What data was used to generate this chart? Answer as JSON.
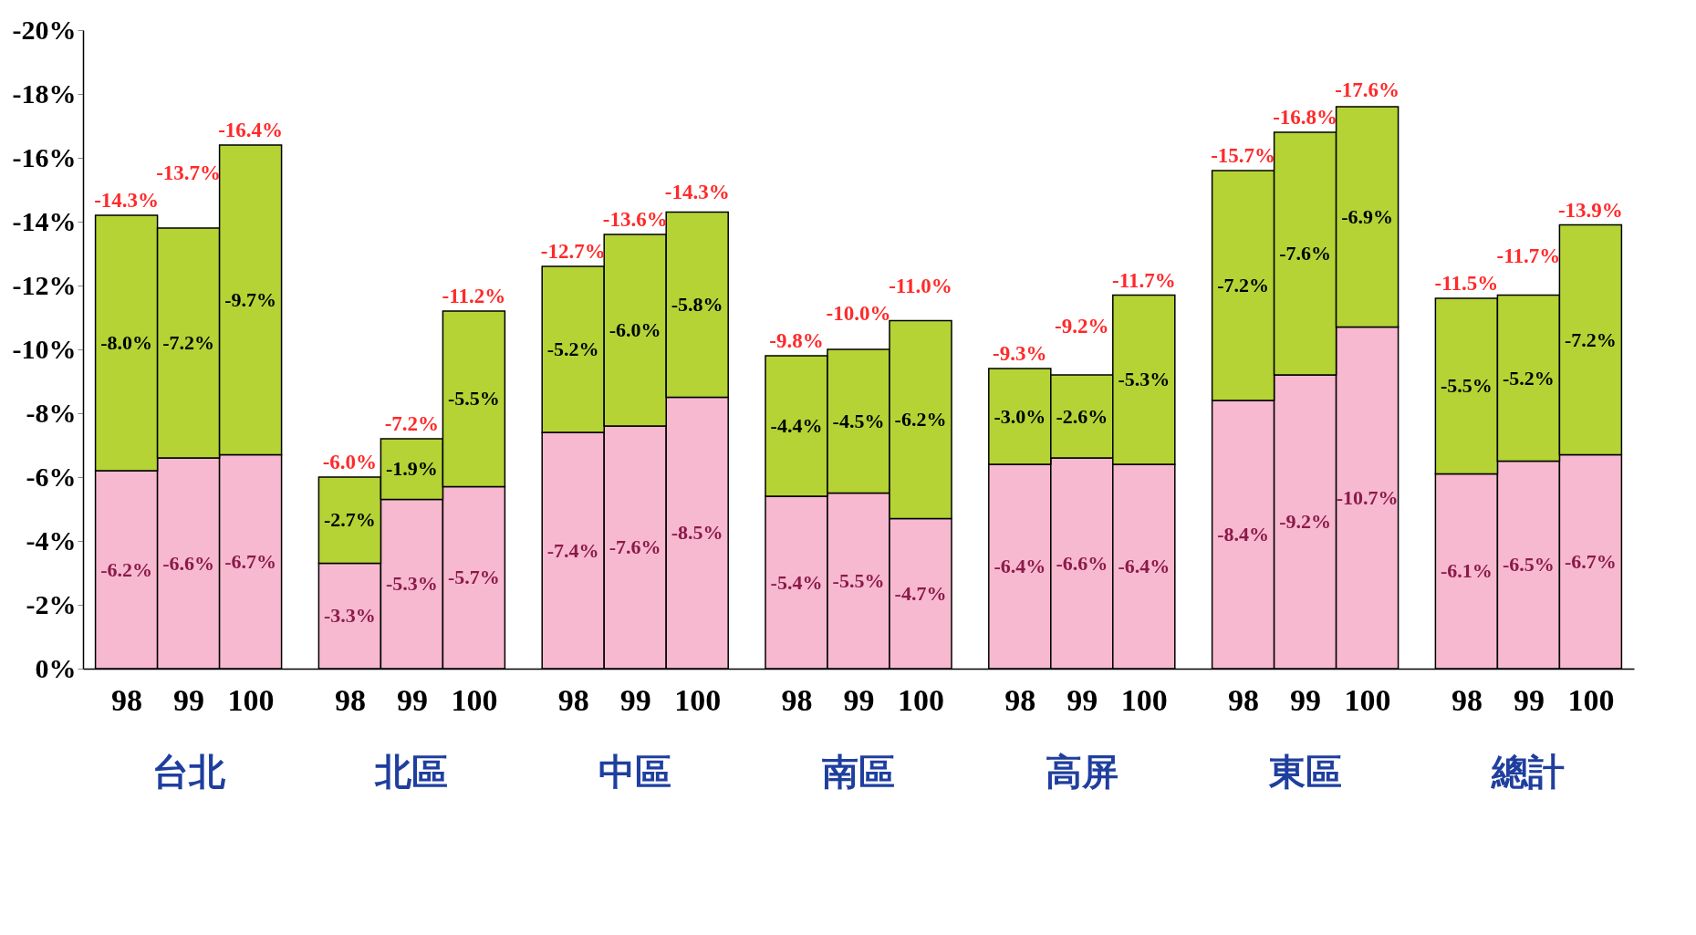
{
  "chart_data": {
    "type": "bar",
    "stacked": true,
    "categories": [
      "98",
      "99",
      "100",
      "98",
      "99",
      "100",
      "98",
      "99",
      "100",
      "98",
      "99",
      "100",
      "98",
      "99",
      "100",
      "98",
      "99",
      "100",
      "98",
      "99",
      "100"
    ],
    "annotations": [
      "台北",
      "北區",
      "中區",
      "南區",
      "高屏",
      "東區",
      "總計"
    ],
    "series": [
      {
        "color": "#f7b9cf",
        "values": [
          -6.2,
          -6.6,
          -6.7,
          -3.3,
          -5.3,
          -5.7,
          -7.4,
          -7.6,
          -8.5,
          -5.4,
          -5.5,
          -4.7,
          -6.4,
          -6.6,
          -6.4,
          -8.4,
          -9.2,
          -10.7,
          -6.1,
          -6.5,
          -6.7
        ],
        "value_labels": [
          "-6.2%",
          "-6.6%",
          "-6.7%",
          "-3.3%",
          "-5.3%",
          "-5.7%",
          "-7.4%",
          "-7.6%",
          "-8.5%",
          "-5.4%",
          "-5.5%",
          "-4.7%",
          "-6.4%",
          "-6.6%",
          "-6.4%",
          "-8.4%",
          "-9.2%",
          "-10.7%",
          "-6.1%",
          "-6.5%",
          "-6.7%"
        ]
      },
      {
        "color": "#b5d335",
        "values": [
          -8.0,
          -7.2,
          -9.7,
          -2.7,
          -1.9,
          -5.5,
          -5.2,
          -6.0,
          -5.8,
          -4.4,
          -4.5,
          -6.2,
          -3.0,
          -2.6,
          -5.3,
          -7.2,
          -7.6,
          -6.9,
          -5.5,
          -5.2,
          -7.2
        ],
        "value_labels": [
          "-8.0%",
          "-7.2%",
          "-9.7%",
          "-2.7%",
          "-1.9%",
          "-5.5%",
          "-5.2%",
          "-6.0%",
          "-5.8%",
          "-4.4%",
          "-4.5%",
          "-6.2%",
          "-3.0%",
          "-2.6%",
          "-5.3%",
          "-7.2%",
          "-7.6%",
          "-6.9%",
          "-5.5%",
          "-5.2%",
          "-7.2%"
        ]
      }
    ],
    "totals": [
      "-14.3%",
      "-13.7%",
      "-16.4%",
      "-6.0%",
      "-7.2%",
      "-11.2%",
      "-12.7%",
      "-13.6%",
      "-14.3%",
      "-9.8%",
      "-10.0%",
      "-11.0%",
      "-9.3%",
      "-9.2%",
      "-11.7%",
      "-15.7%",
      "-16.8%",
      "-17.6%",
      "-11.5%",
      "-11.7%",
      "-13.9%"
    ],
    "ylim": [
      0,
      -20
    ],
    "yticks": [
      {
        "value": 0,
        "label": "0%"
      },
      {
        "value": -2,
        "label": "-2%"
      },
      {
        "value": -4,
        "label": "-4%"
      },
      {
        "value": -6,
        "label": "-6%"
      },
      {
        "value": -8,
        "label": "-8%"
      },
      {
        "value": -10,
        "label": "-10%"
      },
      {
        "value": -12,
        "label": "-12%"
      },
      {
        "value": -14,
        "label": "-14%"
      },
      {
        "value": -16,
        "label": "-16%"
      },
      {
        "value": -18,
        "label": "-18%"
      },
      {
        "value": -20,
        "label": "-20%"
      }
    ]
  }
}
